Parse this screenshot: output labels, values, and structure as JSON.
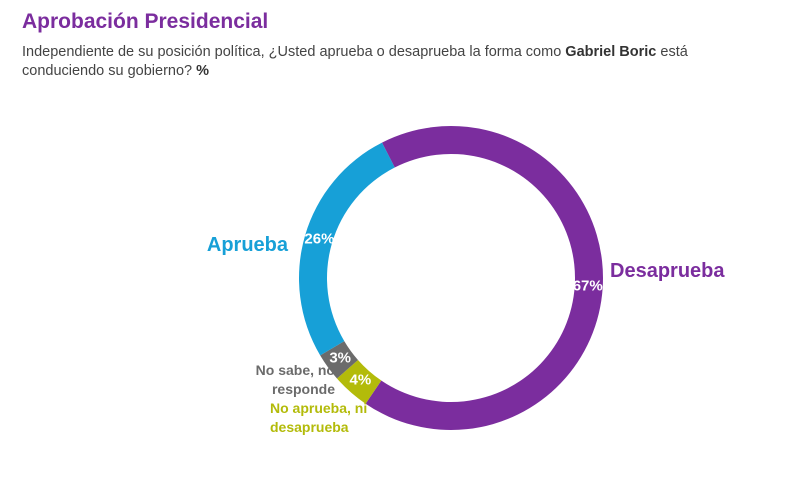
{
  "chart_data": {
    "type": "pie",
    "title": "Aprobación Presidencial",
    "subtitle": [
      "Independiente de su posición política, ¿Usted aprueba o desaprueba la forma como ",
      "Gabriel Boric",
      " está conduciendo su gobierno? ",
      "%"
    ],
    "categories": [
      "Desaprueba",
      "No aprueba, ni desaprueba",
      "No sabe, no responde",
      "Aprueba"
    ],
    "values": [
      67,
      4,
      3,
      26
    ],
    "value_labels": [
      "67%",
      "4%",
      "3%",
      "26%"
    ],
    "colors": [
      "#7b2d9e",
      "#b3bb0a",
      "#6b6b6b",
      "#17a0d7"
    ]
  }
}
